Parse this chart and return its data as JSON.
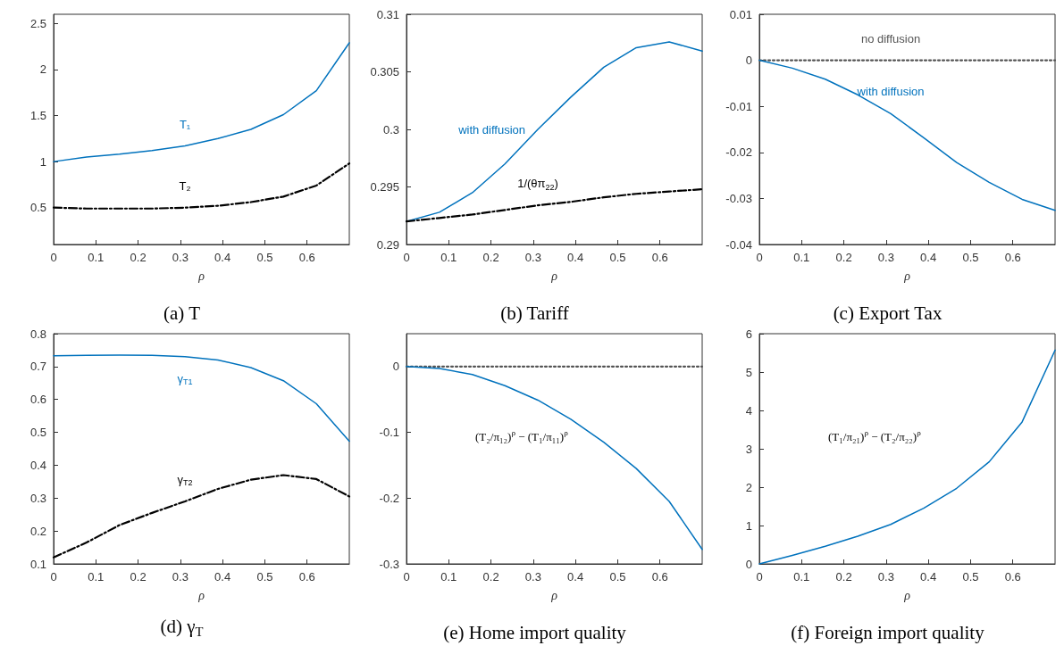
{
  "chart_data": [
    {
      "type": "line",
      "title": "(a) T",
      "xlabel": "ρ",
      "x": [
        0,
        0.078,
        0.156,
        0.233,
        0.311,
        0.389,
        0.467,
        0.544,
        0.622,
        0.7
      ],
      "xlim": [
        0,
        0.7
      ],
      "xticks": [
        0,
        0.1,
        0.2,
        0.3,
        0.4,
        0.5,
        0.6
      ],
      "ylim": [
        0.1,
        2.6
      ],
      "yticks": [
        0.5,
        1,
        1.5,
        2,
        2.5
      ],
      "grid": false,
      "legend": false,
      "series": [
        {
          "name": "T₁",
          "color": "#0072bd",
          "line_style": "solid",
          "values": [
            1.0,
            1.05,
            1.08,
            1.12,
            1.17,
            1.25,
            1.35,
            1.51,
            1.77,
            2.29
          ]
        },
        {
          "name": "T₂",
          "color": "#000000",
          "line_style": "dashed",
          "values": [
            0.5,
            0.49,
            0.49,
            0.49,
            0.5,
            0.52,
            0.56,
            0.62,
            0.74,
            0.98
          ]
        }
      ]
    },
    {
      "type": "line",
      "title": "(b) Tariff",
      "xlabel": "ρ",
      "x": [
        0,
        0.078,
        0.156,
        0.233,
        0.311,
        0.389,
        0.467,
        0.544,
        0.622,
        0.7
      ],
      "xlim": [
        0,
        0.7
      ],
      "xticks": [
        0,
        0.1,
        0.2,
        0.3,
        0.4,
        0.5,
        0.6
      ],
      "ylim": [
        0.29,
        0.31
      ],
      "yticks": [
        0.29,
        0.295,
        0.3,
        0.305,
        0.31
      ],
      "grid": false,
      "legend": false,
      "series": [
        {
          "name": "with diffusion",
          "color": "#0072bd",
          "line_style": "solid",
          "values": [
            0.292,
            0.2928,
            0.2945,
            0.297,
            0.3,
            0.3028,
            0.3054,
            0.3071,
            0.3076,
            0.3068
          ]
        },
        {
          "name": "1/(θπ$_{22}$)",
          "color": "#000000",
          "line_style": "dashed",
          "values": [
            0.292,
            0.2923,
            0.2926,
            0.293,
            0.2934,
            0.2937,
            0.2941,
            0.2944,
            0.2946,
            0.2948
          ]
        }
      ]
    },
    {
      "type": "line",
      "title": "(c) Export Tax",
      "xlabel": "ρ",
      "x": [
        0,
        0.078,
        0.156,
        0.233,
        0.311,
        0.389,
        0.467,
        0.544,
        0.622,
        0.7
      ],
      "xlim": [
        0,
        0.7
      ],
      "xticks": [
        0,
        0.1,
        0.2,
        0.3,
        0.4,
        0.5,
        0.6
      ],
      "ylim": [
        -0.04,
        0.01
      ],
      "yticks": [
        -0.04,
        -0.03,
        -0.02,
        -0.01,
        0,
        0.01
      ],
      "grid": false,
      "legend": false,
      "series": [
        {
          "name": "no diffusion",
          "color": "#555555",
          "line_style": "dotted",
          "values": [
            0,
            0,
            0,
            0,
            0,
            0,
            0,
            0,
            0,
            0
          ]
        },
        {
          "name": "with diffusion",
          "color": "#0072bd",
          "line_style": "solid",
          "values": [
            0,
            -0.0017,
            -0.0041,
            -0.0075,
            -0.0116,
            -0.0168,
            -0.0222,
            -0.0265,
            -0.0302,
            -0.0326
          ]
        }
      ]
    },
    {
      "type": "line",
      "title": "(d) γ$_{T}$",
      "xlabel": "ρ",
      "x": [
        0,
        0.078,
        0.156,
        0.233,
        0.311,
        0.389,
        0.467,
        0.544,
        0.622,
        0.7
      ],
      "xlim": [
        0,
        0.7
      ],
      "xticks": [
        0,
        0.1,
        0.2,
        0.3,
        0.4,
        0.5,
        0.6
      ],
      "ylim": [
        0.1,
        0.8
      ],
      "yticks": [
        0.1,
        0.2,
        0.3,
        0.4,
        0.5,
        0.6,
        0.7,
        0.8
      ],
      "grid": false,
      "legend": false,
      "series": [
        {
          "name": "γ$_{T1}$",
          "color": "#0072bd",
          "line_style": "solid",
          "values": [
            0.733,
            0.734,
            0.735,
            0.734,
            0.73,
            0.72,
            0.697,
            0.657,
            0.587,
            0.473
          ]
        },
        {
          "name": "γ$_{T2}$",
          "color": "#000000",
          "line_style": "dashed",
          "values": [
            0.12,
            0.165,
            0.218,
            0.255,
            0.29,
            0.328,
            0.356,
            0.37,
            0.358,
            0.305
          ]
        }
      ]
    },
    {
      "type": "line",
      "title": "(e) Home import quality",
      "xlabel": "ρ",
      "annotations": [
        "(T₂/π₁₂)$^{ρ}$ − (T₁/π₁₁)$^{ρ}$"
      ],
      "x": [
        0,
        0.078,
        0.156,
        0.233,
        0.311,
        0.389,
        0.467,
        0.544,
        0.622,
        0.7
      ],
      "xlim": [
        0,
        0.7
      ],
      "xticks": [
        0,
        0.1,
        0.2,
        0.3,
        0.4,
        0.5,
        0.6
      ],
      "ylim": [
        -0.3,
        0.05
      ],
      "yticks": [
        -0.3,
        -0.2,
        -0.1,
        0
      ],
      "grid": false,
      "legend": false,
      "series": [
        {
          "color": "#555555",
          "line_style": "dotted",
          "values": [
            0,
            0,
            0,
            0,
            0,
            0,
            0,
            0,
            0,
            0
          ]
        },
        {
          "color": "#0072bd",
          "line_style": "solid",
          "values": [
            0,
            -0.003,
            -0.012,
            -0.029,
            -0.051,
            -0.08,
            -0.115,
            -0.155,
            -0.205,
            -0.278
          ]
        }
      ]
    },
    {
      "type": "line",
      "title": "(f) Foreign import quality",
      "xlabel": "ρ",
      "annotations": [
        "(T₁/π₂₁)$^{ρ}$ − (T₂/π₂₂)$^{ρ}$"
      ],
      "x": [
        0,
        0.078,
        0.156,
        0.233,
        0.311,
        0.389,
        0.467,
        0.544,
        0.622,
        0.7
      ],
      "xlim": [
        0,
        0.7
      ],
      "xticks": [
        0,
        0.1,
        0.2,
        0.3,
        0.4,
        0.5,
        0.6
      ],
      "ylim": [
        0,
        6
      ],
      "yticks": [
        0,
        1,
        2,
        3,
        4,
        5,
        6
      ],
      "grid": false,
      "legend": false,
      "series": [
        {
          "color": "#0072bd",
          "line_style": "solid",
          "values": [
            0,
            0.22,
            0.46,
            0.72,
            1.03,
            1.45,
            1.97,
            2.66,
            3.7,
            5.57
          ]
        }
      ]
    }
  ]
}
